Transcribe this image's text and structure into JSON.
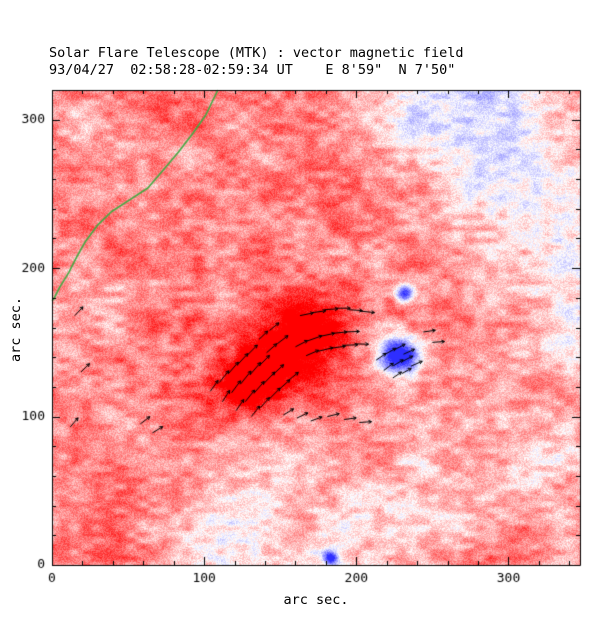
{
  "chart_data": {
    "type": "heatmap",
    "title": "Solar Flare Telescope (MTK) : vector magnetic field",
    "subtitle": "93/04/27  02:58:28-02:59:34 UT    E 8'59\"  N 7'50\"",
    "xlabel": "arc sec.",
    "ylabel": "arc sec.",
    "xlim": [
      0,
      347
    ],
    "ylim": [
      0,
      320
    ],
    "xticks": [
      0,
      100,
      200,
      300
    ],
    "yticks": [
      0,
      100,
      200,
      300
    ],
    "minor_tick_step": 20,
    "grid": false,
    "legend": false,
    "colors": {
      "positive_polarity": "#ff4040",
      "negative_polarity": "#5050ff",
      "neutral_line": "#44aa44",
      "vectors": "#000000",
      "axes": "#000000",
      "background": "#ffffff"
    },
    "noise": {
      "seed": 19930427,
      "base": 0.46,
      "coarse_amp": 0.21,
      "coarse_scale": 9,
      "med_amp": 0.16,
      "med_scale": 30,
      "fine_amp": 0.15
    },
    "field_blobs": {
      "format": "[x_arcsec, y_arcsec, radius_arcsec, amplitude(+ = stronger red, small - = white, large - = blue spot)]",
      "items": [
        [
          158,
          152,
          28,
          0.5
        ],
        [
          135,
          128,
          24,
          0.42
        ],
        [
          120,
          117,
          15,
          0.25
        ],
        [
          172,
          160,
          18,
          0.3
        ],
        [
          150,
          142,
          55,
          0.18
        ],
        [
          186,
          150,
          14,
          0.15
        ],
        [
          275,
          295,
          45,
          -0.32
        ],
        [
          315,
          255,
          50,
          -0.33
        ],
        [
          335,
          205,
          45,
          -0.3
        ],
        [
          344,
          160,
          35,
          -0.25
        ],
        [
          290,
          318,
          40,
          -0.3
        ],
        [
          250,
          308,
          40,
          -0.25
        ],
        [
          190,
          18,
          55,
          -0.28
        ],
        [
          120,
          28,
          40,
          -0.22
        ],
        [
          245,
          45,
          45,
          -0.2
        ],
        [
          90,
          8,
          35,
          -0.2
        ],
        [
          20,
          300,
          22,
          -0.18
        ],
        [
          48,
          287,
          18,
          -0.14
        ],
        [
          300,
          100,
          40,
          -0.15
        ],
        [
          330,
          60,
          35,
          -0.18
        ],
        [
          216,
          148,
          16,
          -0.3
        ],
        [
          240,
          150,
          14,
          -0.22
        ],
        [
          228,
          140,
          12,
          -1.7
        ],
        [
          232,
          183,
          5.5,
          -1.3
        ],
        [
          183,
          5,
          4.5,
          -1.3
        ]
      ]
    },
    "neutral_line_points": [
      [
        109,
        320
      ],
      [
        101,
        303
      ],
      [
        92,
        290
      ],
      [
        83,
        278
      ],
      [
        73,
        266
      ],
      [
        63,
        254
      ],
      [
        51,
        246
      ],
      [
        39,
        238
      ],
      [
        30,
        229
      ],
      [
        22,
        218
      ],
      [
        16,
        207
      ],
      [
        11,
        197
      ],
      [
        5,
        187
      ],
      [
        1,
        179
      ],
      [
        0,
        178
      ]
    ],
    "vector_field": {
      "format": "[x_arcsec, y_arcsec, angle_deg_ccw_from_east, length_arcsec]",
      "items": [
        [
          104,
          117,
          55,
          9
        ],
        [
          110,
          123,
          52,
          10
        ],
        [
          116,
          129,
          50,
          10
        ],
        [
          122,
          135,
          48,
          10
        ],
        [
          128,
          141,
          46,
          10
        ],
        [
          112,
          110,
          58,
          9
        ],
        [
          118,
          116,
          54,
          10
        ],
        [
          124,
          122,
          52,
          11
        ],
        [
          130,
          128,
          50,
          11
        ],
        [
          136,
          134,
          46,
          10
        ],
        [
          121,
          104,
          56,
          9
        ],
        [
          127,
          110,
          52,
          10
        ],
        [
          133,
          116,
          50,
          10
        ],
        [
          139,
          122,
          47,
          11
        ],
        [
          145,
          128,
          44,
          10
        ],
        [
          131,
          100,
          52,
          9
        ],
        [
          137,
          106,
          49,
          9
        ],
        [
          143,
          112,
          46,
          10
        ],
        [
          149,
          118,
          43,
          10
        ],
        [
          155,
          124,
          40,
          9
        ],
        [
          141,
          143,
          42,
          9
        ],
        [
          148,
          149,
          38,
          9
        ],
        [
          136,
          152,
          44,
          8
        ],
        [
          143,
          158,
          40,
          8
        ],
        [
          160,
          147,
          28,
          9
        ],
        [
          168,
          151,
          20,
          10
        ],
        [
          176,
          154,
          12,
          10
        ],
        [
          184,
          156,
          6,
          10
        ],
        [
          192,
          157,
          2,
          10
        ],
        [
          167,
          141,
          24,
          9
        ],
        [
          175,
          144,
          14,
          10
        ],
        [
          183,
          146,
          8,
          10
        ],
        [
          191,
          148,
          2,
          10
        ],
        [
          199,
          149,
          -2,
          9
        ],
        [
          163,
          168,
          12,
          9
        ],
        [
          171,
          170,
          8,
          9
        ],
        [
          179,
          172,
          4,
          9
        ],
        [
          187,
          173,
          0,
          9
        ],
        [
          195,
          172,
          -4,
          9
        ],
        [
          203,
          171,
          -6,
          9
        ],
        [
          213,
          138,
          35,
          8
        ],
        [
          219,
          142,
          30,
          8
        ],
        [
          225,
          145,
          28,
          8
        ],
        [
          231,
          142,
          25,
          8
        ],
        [
          218,
          131,
          38,
          8
        ],
        [
          224,
          134,
          32,
          8
        ],
        [
          230,
          137,
          28,
          8
        ],
        [
          236,
          134,
          24,
          8
        ],
        [
          224,
          126,
          35,
          7
        ],
        [
          230,
          129,
          30,
          7
        ],
        [
          152,
          101,
          32,
          8
        ],
        [
          161,
          99,
          26,
          8
        ],
        [
          170,
          97,
          20,
          8
        ],
        [
          181,
          100,
          14,
          8
        ],
        [
          192,
          98,
          8,
          8
        ],
        [
          202,
          96,
          4,
          8
        ],
        [
          15,
          168,
          48,
          8
        ],
        [
          19,
          130,
          45,
          8
        ],
        [
          12,
          93,
          50,
          8
        ],
        [
          58,
          95,
          38,
          8
        ],
        [
          66,
          89,
          32,
          8
        ],
        [
          244,
          157,
          8,
          8
        ],
        [
          250,
          150,
          4,
          8
        ]
      ]
    }
  }
}
